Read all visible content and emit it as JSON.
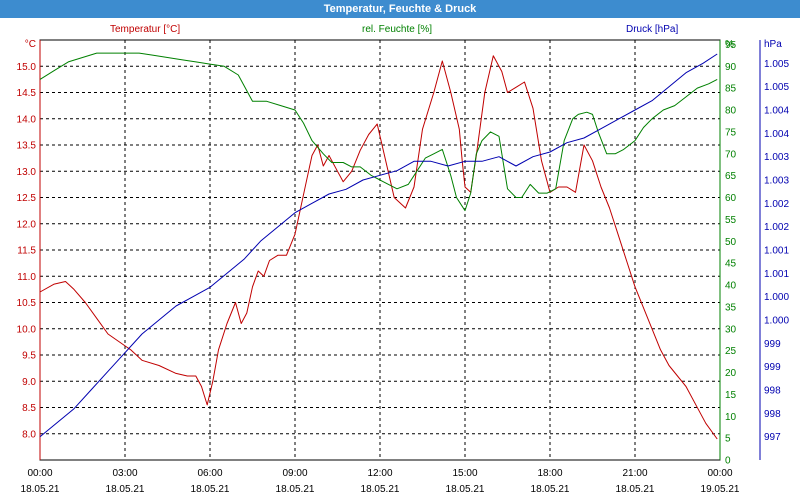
{
  "title": "Temperatur, Feuchte & Druck",
  "colors": {
    "title_bg": "#3d8ccf",
    "temperature": "#c00000",
    "humidity": "#008000",
    "pressure": "#0000b0"
  },
  "chart_data": {
    "type": "line",
    "title": "Temperatur, Feuchte & Druck",
    "grid": true,
    "x_ticks": [
      {
        "time": "00:00",
        "date": "18.05.21"
      },
      {
        "time": "03:00",
        "date": "18.05.21"
      },
      {
        "time": "06:00",
        "date": "18.05.21"
      },
      {
        "time": "09:00",
        "date": "18.05.21"
      },
      {
        "time": "12:00",
        "date": "18.05.21"
      },
      {
        "time": "15:00",
        "date": "18.05.21"
      },
      {
        "time": "18:00",
        "date": "18.05.21"
      },
      {
        "time": "21:00",
        "date": "18.05.21"
      },
      {
        "time": "00:00",
        "date": "19.05.21"
      }
    ],
    "xlim_hours": [
      0,
      24
    ],
    "axes": {
      "temperature": {
        "unit": "°C",
        "lim": [
          7.5,
          15.5
        ],
        "tick_values": [
          8.0,
          8.5,
          9.0,
          9.5,
          10.0,
          10.5,
          11.0,
          11.5,
          12.0,
          12.5,
          13.0,
          13.5,
          14.0,
          14.5,
          15.0
        ],
        "tick_labels": [
          "8.0",
          "8.5",
          "9.0",
          "9.5",
          "10.0",
          "10.5",
          "11.0",
          "11.5",
          "12.0",
          "12.5",
          "13.0",
          "13.5",
          "14.0",
          "14.5",
          "15.0"
        ]
      },
      "humidity": {
        "unit": "%",
        "lim": [
          0,
          96
        ],
        "tick_values": [
          0,
          5,
          10,
          15,
          20,
          25,
          30,
          35,
          40,
          45,
          50,
          55,
          60,
          65,
          70,
          75,
          80,
          85,
          90,
          95
        ],
        "tick_labels": [
          "0",
          "5",
          "10",
          "15",
          "20",
          "25",
          "30",
          "35",
          "40",
          "45",
          "50",
          "55",
          "60",
          "65",
          "70",
          "75",
          "80",
          "85",
          "90",
          "95"
        ]
      },
      "pressure": {
        "unit": "hPa",
        "lim": [
          996.5,
          1005.5
        ],
        "tick_values": [
          997.0,
          997.5,
          998.0,
          998.5,
          999.0,
          999.5,
          1000.0,
          1000.5,
          1001.0,
          1001.5,
          1002.0,
          1002.5,
          1003.0,
          1003.5,
          1004.0,
          1004.5,
          1005.0
        ],
        "tick_labels": [
          "997",
          "998",
          "998",
          "999",
          "999",
          "1.000",
          "1.000",
          "1.001",
          "1.001",
          "1.002",
          "1.002",
          "1.003",
          "1.003",
          "1.004",
          "1.004",
          "1.005",
          "1.005"
        ]
      }
    },
    "series": [
      {
        "name": "Temperatur [°C]",
        "axis": "temperature",
        "x": [
          0,
          0.5,
          0.9,
          1.2,
          1.6,
          2.0,
          2.4,
          2.8,
          3.2,
          3.6,
          4.2,
          4.8,
          5.2,
          5.5,
          5.7,
          5.9,
          6.1,
          6.3,
          6.6,
          6.9,
          7.1,
          7.3,
          7.5,
          7.7,
          7.9,
          8.1,
          8.4,
          8.7,
          9.0,
          9.4,
          9.6,
          9.8,
          10.0,
          10.2,
          10.5,
          10.7,
          11.0,
          11.3,
          11.6,
          11.9,
          12.2,
          12.5,
          12.9,
          13.2,
          13.5,
          13.9,
          14.2,
          14.5,
          14.8,
          14.9,
          15.0,
          15.2,
          15.4,
          15.7,
          16.0,
          16.3,
          16.5,
          16.8,
          17.1,
          17.4,
          17.7,
          18.0,
          18.3,
          18.6,
          18.9,
          19.2,
          19.5,
          19.8,
          20.1,
          20.4,
          20.7,
          21.0,
          21.3,
          21.6,
          21.9,
          22.2,
          22.5,
          22.8,
          23.1,
          23.5,
          23.9
        ],
        "y": [
          10.7,
          10.85,
          10.9,
          10.75,
          10.5,
          10.2,
          9.9,
          9.75,
          9.6,
          9.4,
          9.3,
          9.15,
          9.1,
          9.1,
          8.9,
          8.55,
          9.0,
          9.6,
          10.1,
          10.5,
          10.1,
          10.3,
          10.8,
          11.1,
          11.0,
          11.3,
          11.4,
          11.4,
          11.8,
          12.8,
          13.3,
          13.5,
          13.1,
          13.3,
          13.0,
          12.8,
          13.0,
          13.4,
          13.7,
          13.9,
          13.2,
          12.5,
          12.3,
          12.7,
          13.8,
          14.5,
          15.1,
          14.5,
          13.8,
          13.2,
          12.7,
          12.6,
          13.3,
          14.5,
          15.2,
          14.9,
          14.5,
          14.6,
          14.7,
          14.2,
          13.2,
          12.6,
          12.7,
          12.7,
          12.6,
          13.5,
          13.2,
          12.7,
          12.3,
          11.8,
          11.3,
          10.8,
          10.4,
          10.0,
          9.6,
          9.3,
          9.1,
          8.9,
          8.6,
          8.2,
          7.9
        ]
      },
      {
        "name": "rel. Feuchte [%]",
        "axis": "humidity",
        "x": [
          0,
          0.5,
          1.0,
          1.5,
          2.0,
          2.5,
          3.0,
          3.5,
          4.0,
          4.5,
          5.0,
          5.5,
          6.0,
          6.5,
          7.0,
          7.5,
          8.0,
          8.5,
          9.0,
          9.3,
          9.6,
          10.0,
          10.3,
          10.7,
          11.0,
          11.3,
          11.7,
          12.0,
          12.3,
          12.6,
          13.0,
          13.3,
          13.6,
          13.9,
          14.2,
          14.5,
          14.7,
          14.9,
          15.0,
          15.2,
          15.4,
          15.6,
          15.9,
          16.2,
          16.5,
          16.8,
          17.0,
          17.3,
          17.6,
          17.9,
          18.2,
          18.5,
          18.8,
          19.0,
          19.3,
          19.5,
          19.7,
          20.0,
          20.3,
          20.6,
          21.0,
          21.3,
          21.6,
          22.0,
          22.4,
          22.8,
          23.2,
          23.6,
          23.9
        ],
        "y": [
          87,
          89,
          91,
          92,
          93,
          93,
          93,
          93,
          92.5,
          92,
          91.5,
          91,
          90.5,
          90,
          88,
          82,
          82,
          81,
          80,
          77,
          73,
          70,
          68,
          68,
          67,
          67,
          65,
          64,
          63,
          62,
          63,
          66,
          69,
          70,
          71,
          65,
          60,
          58,
          57,
          61,
          70,
          73,
          75,
          74,
          62,
          60,
          60,
          63,
          61,
          61,
          62,
          73,
          78,
          79,
          79.5,
          79,
          75,
          70,
          70,
          71,
          73,
          76,
          78,
          80,
          81,
          83,
          85,
          86,
          87
        ]
      },
      {
        "name": "Druck [hPa]",
        "axis": "pressure",
        "x": [
          0,
          0.6,
          1.2,
          1.8,
          2.4,
          3.0,
          3.6,
          4.2,
          4.8,
          5.4,
          6.0,
          6.6,
          7.2,
          7.8,
          8.4,
          9.0,
          9.6,
          10.2,
          10.8,
          11.4,
          12.0,
          12.6,
          13.2,
          13.8,
          14.4,
          15.0,
          15.6,
          16.2,
          16.8,
          17.4,
          18.0,
          18.6,
          19.2,
          19.8,
          20.4,
          21.0,
          21.6,
          22.2,
          22.8,
          23.4,
          23.9
        ],
        "y": [
          997.0,
          997.3,
          997.6,
          998.0,
          998.4,
          998.8,
          999.2,
          999.5,
          999.8,
          1000.0,
          1000.2,
          1000.5,
          1000.8,
          1001.2,
          1001.5,
          1001.8,
          1002.0,
          1002.2,
          1002.3,
          1002.5,
          1002.6,
          1002.7,
          1002.9,
          1002.9,
          1002.8,
          1002.9,
          1002.9,
          1003.0,
          1002.8,
          1003.0,
          1003.1,
          1003.3,
          1003.4,
          1003.6,
          1003.8,
          1004.0,
          1004.2,
          1004.5,
          1004.8,
          1005.0,
          1005.2
        ]
      }
    ]
  }
}
